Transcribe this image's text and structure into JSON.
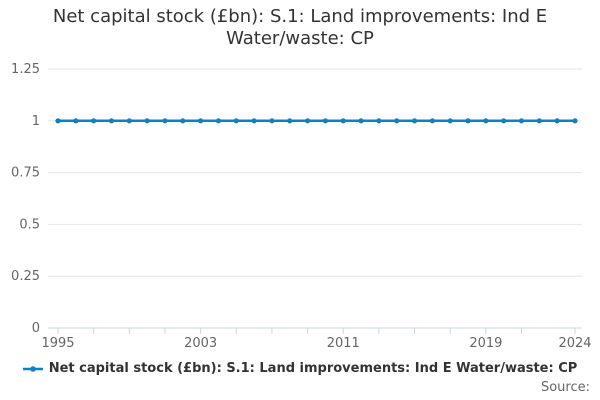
{
  "title_lines": [
    "Net capital stock (£bn): S.1: Land improvements: Ind E",
    "Water/waste: CP"
  ],
  "source_label": "Source:",
  "legend": {
    "label": "Net capital stock (£bn): S.1: Land improvements: Ind E Water/waste: CP"
  },
  "colors": {
    "series": "#0f80c5",
    "grid": "#e6e6e6",
    "axis": "#ccd6eb",
    "title_text": "#333333",
    "axis_text": "#666666",
    "muted_text": "#666666",
    "background": "#ffffff"
  },
  "chart_data": {
    "type": "line",
    "title": "Net capital stock (£bn): S.1: Land improvements: Ind E Water/waste: CP",
    "xlabel": "",
    "ylabel": "",
    "x": [
      1995,
      1996,
      1997,
      1998,
      1999,
      2000,
      2001,
      2002,
      2003,
      2004,
      2005,
      2006,
      2007,
      2008,
      2009,
      2010,
      2011,
      2012,
      2013,
      2014,
      2015,
      2016,
      2017,
      2018,
      2019,
      2020,
      2021,
      2022,
      2023,
      2024
    ],
    "series": [
      {
        "name": "Net capital stock (£bn): S.1: Land improvements: Ind E Water/waste: CP",
        "values": [
          1,
          1,
          1,
          1,
          1,
          1,
          1,
          1,
          1,
          1,
          1,
          1,
          1,
          1,
          1,
          1,
          1,
          1,
          1,
          1,
          1,
          1,
          1,
          1,
          1,
          1,
          1,
          1,
          1,
          1
        ]
      }
    ],
    "ylim": [
      0,
      1.25
    ],
    "yticks": [
      0,
      0.25,
      0.5,
      0.75,
      1,
      1.25
    ],
    "ytick_labels": [
      "0",
      "0.25",
      "0.5",
      "0.75",
      "1",
      "1.25"
    ],
    "xtick_label_years": [
      1995,
      2003,
      2011,
      2019,
      2024
    ],
    "xtick_minor_years": [
      1995,
      1997,
      1999,
      2001,
      2003,
      2005,
      2007,
      2009,
      2011,
      2013,
      2015,
      2017,
      2019,
      2021,
      2024
    ],
    "grid": "horizontal",
    "legend_position": "bottom",
    "marker": "circle"
  }
}
